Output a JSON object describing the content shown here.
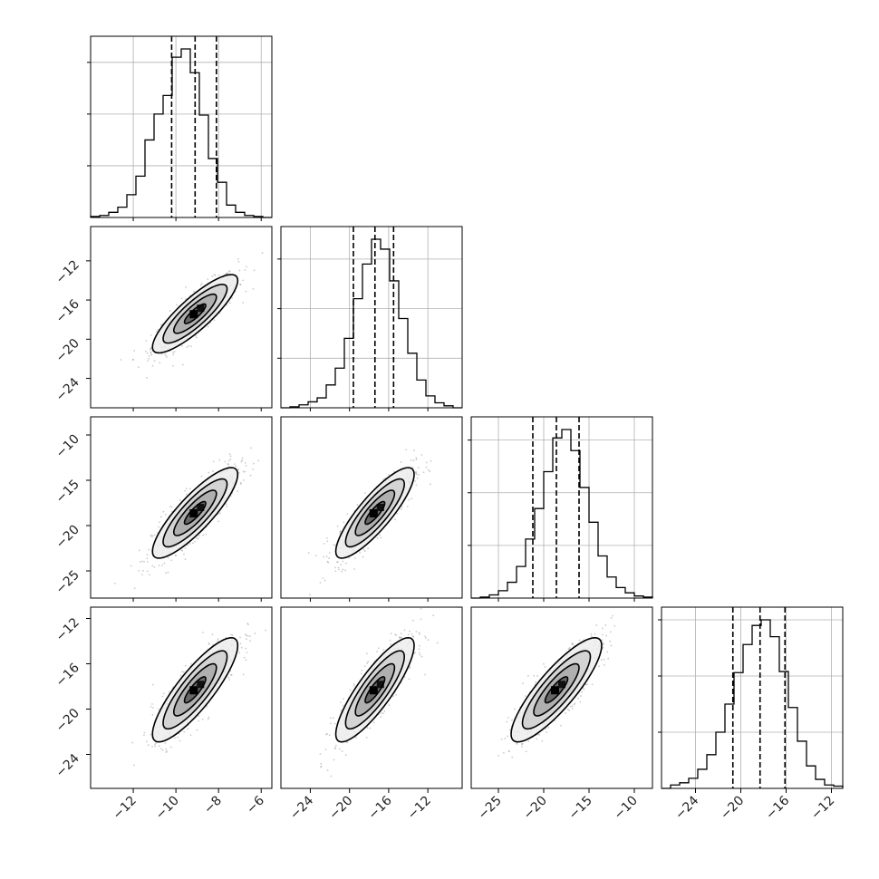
{
  "chart_data": {
    "type": "corner",
    "title": "",
    "grid": true,
    "params": [
      {
        "range": [
          -14,
          -5.5
        ],
        "mean": -9.1,
        "sd": 1.0,
        "quantiles": [
          -10.2,
          -9.1,
          -8.1
        ],
        "ticks": [
          -12,
          -10,
          -8,
          -6
        ],
        "tick_labels": [
          "−12",
          "−10",
          "−8",
          "−6"
        ]
      },
      {
        "range": [
          -27,
          -8.5
        ],
        "mean": -17.4,
        "sd": 2.0,
        "quantiles": [
          -19.6,
          -17.4,
          -15.5
        ],
        "ticks": [
          -24,
          -20,
          -16,
          -12
        ],
        "tick_labels": [
          "−24",
          "−20",
          "−16",
          "−12"
        ]
      },
      {
        "range": [
          -28,
          -8
        ],
        "mean": -18.6,
        "sd": 2.5,
        "quantiles": [
          -21.2,
          -18.6,
          -16.1
        ],
        "ticks": [
          -25,
          -20,
          -15,
          -10
        ],
        "tick_labels": [
          "−25",
          "−20",
          "−15",
          "−10"
        ]
      },
      {
        "range": [
          -27,
          -11
        ],
        "mean": -18.3,
        "sd": 2.3,
        "quantiles": [
          -20.7,
          -18.3,
          -16.1
        ],
        "ticks": [
          -24,
          -20,
          -16,
          -12
        ],
        "tick_labels": [
          "−24",
          "−20",
          "−16",
          "−12"
        ]
      }
    ],
    "correlation": 0.85,
    "histograms": [
      {
        "param": 0,
        "counts": [
          1,
          2,
          5,
          10,
          22,
          40,
          75,
          100,
          118,
          155,
          163,
          140,
          99,
          57,
          34,
          12,
          5,
          2,
          1,
          0
        ]
      },
      {
        "param": 1,
        "counts": [
          0,
          1,
          3,
          6,
          10,
          23,
          40,
          70,
          110,
          145,
          170,
          160,
          128,
          90,
          55,
          28,
          12,
          5,
          2,
          0
        ]
      },
      {
        "param": 2,
        "counts": [
          0,
          1,
          3,
          7,
          15,
          30,
          56,
          85,
          120,
          152,
          160,
          140,
          105,
          72,
          40,
          20,
          10,
          5,
          2,
          1
        ]
      },
      {
        "param": 3,
        "counts": [
          0,
          3,
          5,
          9,
          17,
          30,
          50,
          75,
          103,
          128,
          145,
          150,
          135,
          104,
          72,
          42,
          20,
          8,
          3,
          2
        ]
      }
    ],
    "contour_levels_sigma": [
      0.5,
      1.0,
      1.5,
      2.0
    ]
  }
}
